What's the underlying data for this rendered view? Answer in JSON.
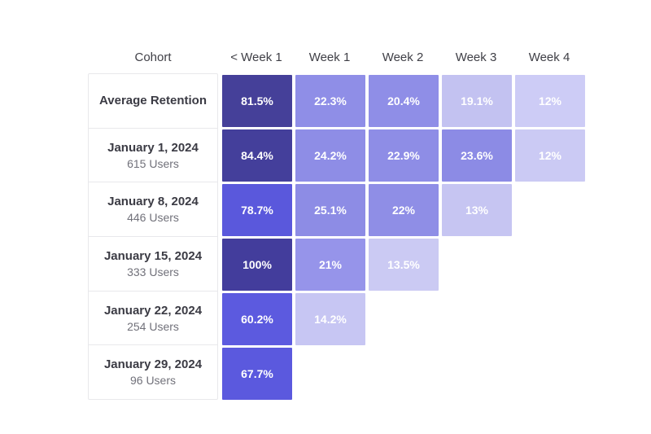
{
  "page": {
    "background": "#ffffff"
  },
  "chart_data": {
    "type": "heatmap",
    "title": "",
    "description": "Weekly cohort retention heatmap table",
    "legend": "none",
    "grid": "off",
    "columns": [
      "Cohort",
      "< Week 1",
      "Week 1",
      "Week 2",
      "Week 3",
      "Week 4"
    ],
    "value_unit": "%",
    "color_scale": {
      "high": "#443f9b",
      "mid_high": "#5b59de",
      "mid": "#8e8de6",
      "low": "#c3c2f1",
      "lowest": "#cdccf6"
    },
    "rows": [
      {
        "cohort": "Average Retention",
        "subtitle": "",
        "values": [
          81.5,
          22.3,
          20.4,
          19.1,
          12
        ],
        "labels": [
          "81.5%",
          "22.3%",
          "20.4%",
          "19.1%",
          "12%"
        ],
        "colors": [
          "#454099",
          "#8f8ee7",
          "#8f8ee7",
          "#c3c2f1",
          "#cdccf6"
        ]
      },
      {
        "cohort": "January 1, 2024",
        "subtitle": "615 Users",
        "users": 615,
        "values": [
          84.4,
          24.2,
          22.9,
          23.6,
          12
        ],
        "labels": [
          "84.4%",
          "24.2%",
          "22.9%",
          "23.6%",
          "12%"
        ],
        "colors": [
          "#443f9b",
          "#8e8de6",
          "#8e8de6",
          "#8c8be5",
          "#cbcaf4"
        ]
      },
      {
        "cohort": "January 8, 2024",
        "subtitle": "446 Users",
        "users": 446,
        "values": [
          78.7,
          25.1,
          22,
          13
        ],
        "labels": [
          "78.7%",
          "25.1%",
          "22%",
          "13%"
        ],
        "colors": [
          "#5a58dc",
          "#8d8ce5",
          "#8f8ee6",
          "#c6c5f2"
        ]
      },
      {
        "cohort": "January 15, 2024",
        "subtitle": "333 Users",
        "users": 333,
        "values": [
          100,
          21,
          13.5
        ],
        "labels": [
          "100%",
          "21%",
          "13.5%"
        ],
        "colors": [
          "#433d9c",
          "#9694ea",
          "#cbcaf3"
        ]
      },
      {
        "cohort": "January 22, 2024",
        "subtitle": "254 Users",
        "users": 254,
        "values": [
          60.2,
          14.2
        ],
        "labels": [
          "60.2%",
          "14.2%"
        ],
        "colors": [
          "#5c5adf",
          "#c7c6f3"
        ]
      },
      {
        "cohort": "January 29, 2024",
        "subtitle": "96 Users",
        "users": 96,
        "values": [
          67.7
        ],
        "labels": [
          "67.7%"
        ],
        "colors": [
          "#5b59de"
        ]
      }
    ]
  }
}
